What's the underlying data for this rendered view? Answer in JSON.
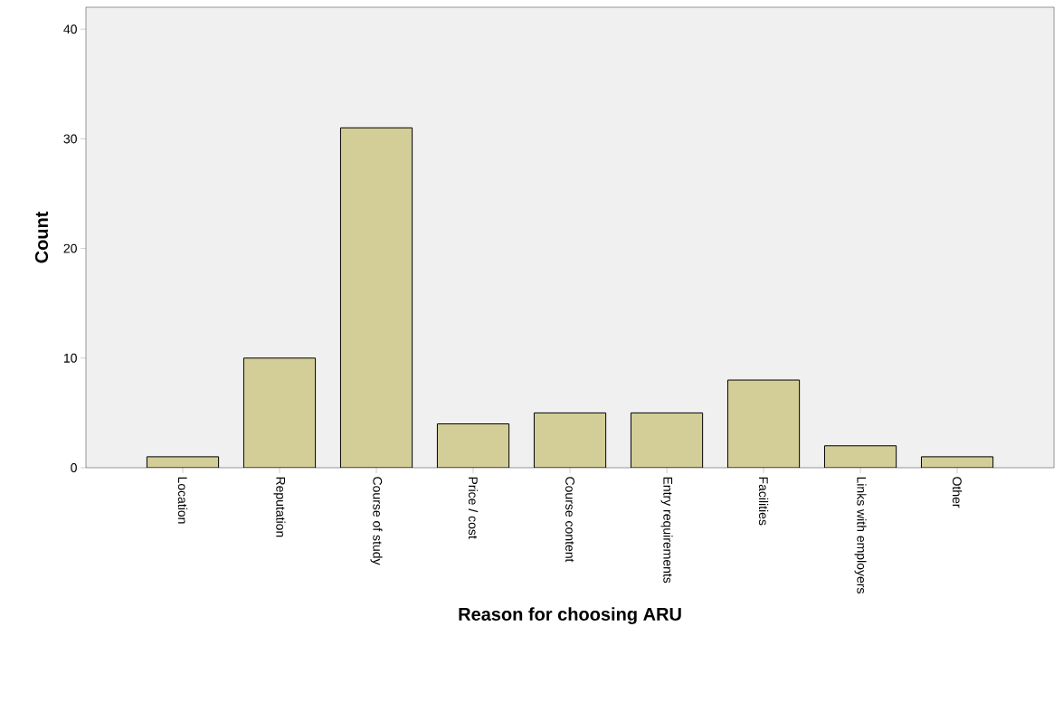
{
  "chart_data": {
    "type": "bar",
    "xlabel": "Reason for choosing ARU",
    "ylabel": "Count",
    "categories": [
      "Location",
      "Reputation",
      "Course of study",
      "Price / cost",
      "Course content",
      "Entry requirements",
      "Facilities",
      "Links with employers",
      "Other"
    ],
    "values": [
      1,
      10,
      31,
      4,
      5,
      5,
      8,
      2,
      1
    ],
    "color": "#d3ce97",
    "ylim": [
      0,
      42
    ],
    "yticks": [
      0,
      10,
      20,
      30,
      40
    ],
    "grid": false
  }
}
